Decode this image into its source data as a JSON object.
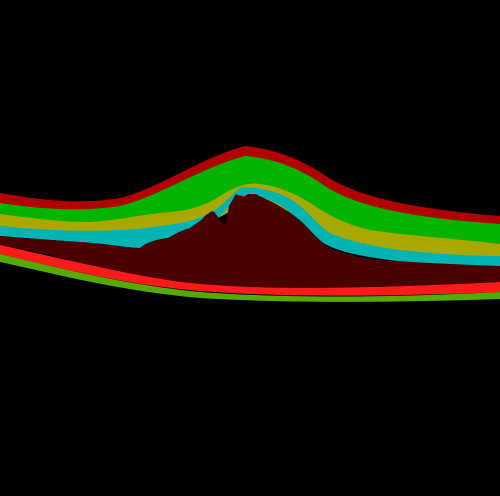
{
  "image": {
    "background_color": "#000000",
    "layers": [
      {
        "id": "outer-band",
        "color": "#b00000"
      },
      {
        "id": "green-band",
        "color": "#00b400"
      },
      {
        "id": "olive-band",
        "color": "#a8a800"
      },
      {
        "id": "cyan-band",
        "color": "#00b4b4"
      },
      {
        "id": "dark-red-mass",
        "color": "#4a0000"
      },
      {
        "id": "red-line",
        "color": "#ff1a1a"
      },
      {
        "id": "lime-line",
        "color": "#55aa00"
      }
    ]
  }
}
